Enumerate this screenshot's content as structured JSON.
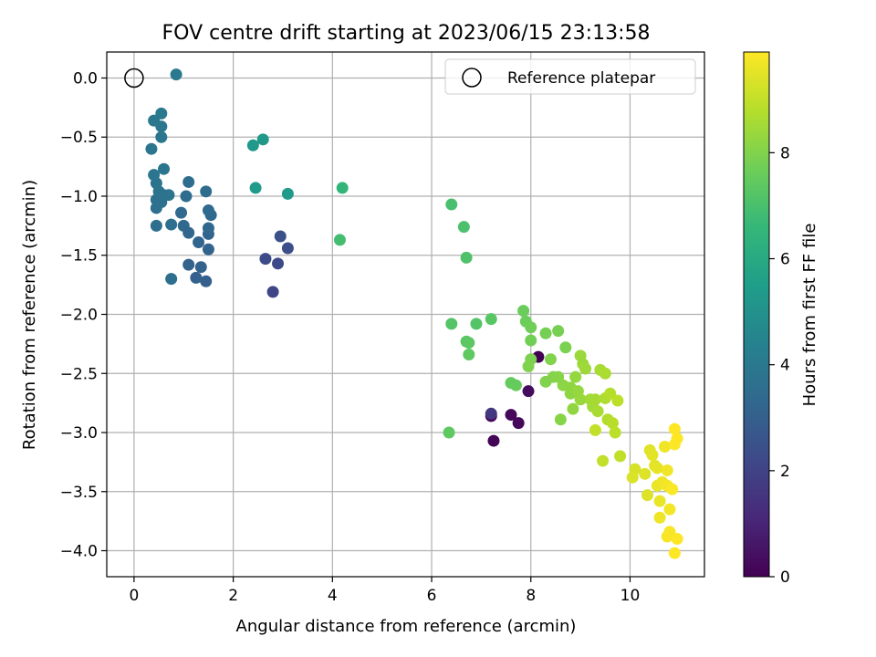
{
  "chart_data": {
    "type": "scatter",
    "title": "FOV centre drift starting at 2023/06/15 23:13:58",
    "xlabel": "Angular distance from reference (arcmin)",
    "ylabel": "Rotation from reference (arcmin)",
    "xlim": [
      -0.55,
      11.5
    ],
    "ylim": [
      -4.22,
      0.22
    ],
    "xticks": [
      0,
      2,
      4,
      6,
      8,
      10
    ],
    "yticks": [
      0.0,
      -0.5,
      -1.0,
      -1.5,
      -2.0,
      -2.5,
      -3.0,
      -3.5,
      -4.0
    ],
    "grid": true,
    "legend_position": "upper right",
    "reference": {
      "name": "Reference platepar",
      "x": 0,
      "y": 0,
      "marker": "open-circle"
    },
    "colorbar": {
      "label": "Hours from first FF file",
      "range": [
        0,
        9.9
      ],
      "ticks": [
        0,
        2,
        4,
        6,
        8
      ],
      "colormap": "viridis"
    },
    "colormap_stops": [
      "#440154",
      "#482878",
      "#3e4989",
      "#31688e",
      "#26828e",
      "#1f9e89",
      "#35b779",
      "#6ece58",
      "#b5de2b",
      "#fde725"
    ],
    "points": [
      {
        "x": 8.15,
        "y": -2.36,
        "c": 0.0
      },
      {
        "x": 7.2,
        "y": -2.86,
        "c": 0.1
      },
      {
        "x": 7.25,
        "y": -3.07,
        "c": 0.1
      },
      {
        "x": 7.6,
        "y": -2.85,
        "c": 0.2
      },
      {
        "x": 7.75,
        "y": -2.92,
        "c": 0.2
      },
      {
        "x": 7.95,
        "y": -2.65,
        "c": 0.3
      },
      {
        "x": 7.2,
        "y": -2.84,
        "c": 1.6
      },
      {
        "x": 2.8,
        "y": -1.81,
        "c": 2.1
      },
      {
        "x": 2.9,
        "y": -1.57,
        "c": 2.2
      },
      {
        "x": 2.65,
        "y": -1.53,
        "c": 2.3
      },
      {
        "x": 3.1,
        "y": -1.44,
        "c": 2.4
      },
      {
        "x": 2.95,
        "y": -1.34,
        "c": 2.5
      },
      {
        "x": 1.45,
        "y": -1.72,
        "c": 3.0
      },
      {
        "x": 1.25,
        "y": -1.69,
        "c": 3.05
      },
      {
        "x": 1.35,
        "y": -1.6,
        "c": 3.1
      },
      {
        "x": 1.1,
        "y": -1.58,
        "c": 3.1
      },
      {
        "x": 1.5,
        "y": -1.45,
        "c": 3.15
      },
      {
        "x": 1.3,
        "y": -1.39,
        "c": 3.2
      },
      {
        "x": 1.5,
        "y": -1.32,
        "c": 3.2
      },
      {
        "x": 1.1,
        "y": -1.31,
        "c": 3.25
      },
      {
        "x": 1.5,
        "y": -1.27,
        "c": 3.3
      },
      {
        "x": 1.0,
        "y": -1.25,
        "c": 3.3
      },
      {
        "x": 1.55,
        "y": -1.16,
        "c": 3.35
      },
      {
        "x": 1.5,
        "y": -1.12,
        "c": 3.4
      },
      {
        "x": 0.95,
        "y": -1.14,
        "c": 3.4
      },
      {
        "x": 1.05,
        "y": -1.0,
        "c": 3.45
      },
      {
        "x": 1.45,
        "y": -0.96,
        "c": 3.5
      },
      {
        "x": 1.1,
        "y": -0.88,
        "c": 3.5
      },
      {
        "x": 0.75,
        "y": -1.24,
        "c": 3.55
      },
      {
        "x": 0.75,
        "y": -1.7,
        "c": 3.6
      },
      {
        "x": 0.45,
        "y": -1.25,
        "c": 3.6
      },
      {
        "x": 0.45,
        "y": -1.1,
        "c": 3.65
      },
      {
        "x": 0.55,
        "y": -1.05,
        "c": 3.7
      },
      {
        "x": 0.45,
        "y": -1.03,
        "c": 3.7
      },
      {
        "x": 0.6,
        "y": -0.99,
        "c": 3.75
      },
      {
        "x": 0.7,
        "y": -0.99,
        "c": 3.75
      },
      {
        "x": 0.5,
        "y": -0.96,
        "c": 3.8
      },
      {
        "x": 0.45,
        "y": -0.89,
        "c": 3.8
      },
      {
        "x": 0.4,
        "y": -0.82,
        "c": 3.85
      },
      {
        "x": 0.6,
        "y": -0.77,
        "c": 3.85
      },
      {
        "x": 0.35,
        "y": -0.6,
        "c": 3.9
      },
      {
        "x": 0.55,
        "y": -0.5,
        "c": 3.9
      },
      {
        "x": 0.55,
        "y": -0.41,
        "c": 3.95
      },
      {
        "x": 0.4,
        "y": -0.36,
        "c": 3.95
      },
      {
        "x": 0.55,
        "y": -0.3,
        "c": 4.0
      },
      {
        "x": 0.85,
        "y": 0.03,
        "c": 4.0
      },
      {
        "x": 2.4,
        "y": -0.57,
        "c": 5.3
      },
      {
        "x": 2.6,
        "y": -0.52,
        "c": 5.3
      },
      {
        "x": 2.45,
        "y": -0.93,
        "c": 5.4
      },
      {
        "x": 3.1,
        "y": -0.98,
        "c": 5.4
      },
      {
        "x": 4.2,
        "y": -0.93,
        "c": 6.5
      },
      {
        "x": 4.15,
        "y": -1.37,
        "c": 6.9
      },
      {
        "x": 6.4,
        "y": -1.07,
        "c": 7.0
      },
      {
        "x": 6.65,
        "y": -1.26,
        "c": 7.05
      },
      {
        "x": 6.7,
        "y": -1.52,
        "c": 7.1
      },
      {
        "x": 6.4,
        "y": -2.08,
        "c": 7.2
      },
      {
        "x": 6.9,
        "y": -2.08,
        "c": 7.2
      },
      {
        "x": 7.2,
        "y": -2.04,
        "c": 7.3
      },
      {
        "x": 6.7,
        "y": -2.23,
        "c": 7.3
      },
      {
        "x": 6.75,
        "y": -2.24,
        "c": 7.35
      },
      {
        "x": 6.75,
        "y": -2.34,
        "c": 7.4
      },
      {
        "x": 6.35,
        "y": -3.0,
        "c": 7.4
      },
      {
        "x": 7.6,
        "y": -2.58,
        "c": 7.5
      },
      {
        "x": 7.7,
        "y": -2.6,
        "c": 7.55
      },
      {
        "x": 7.85,
        "y": -1.97,
        "c": 7.6
      },
      {
        "x": 7.9,
        "y": -2.06,
        "c": 7.65
      },
      {
        "x": 8.0,
        "y": -2.11,
        "c": 7.7
      },
      {
        "x": 8.0,
        "y": -2.22,
        "c": 7.75
      },
      {
        "x": 8.3,
        "y": -2.16,
        "c": 7.8
      },
      {
        "x": 8.55,
        "y": -2.14,
        "c": 7.85
      },
      {
        "x": 8.7,
        "y": -2.28,
        "c": 7.9
      },
      {
        "x": 8.0,
        "y": -2.38,
        "c": 7.9
      },
      {
        "x": 7.95,
        "y": -2.44,
        "c": 7.95
      },
      {
        "x": 8.4,
        "y": -2.38,
        "c": 8.0
      },
      {
        "x": 8.3,
        "y": -2.57,
        "c": 8.0
      },
      {
        "x": 8.45,
        "y": -2.53,
        "c": 8.05
      },
      {
        "x": 8.55,
        "y": -2.53,
        "c": 8.1
      },
      {
        "x": 8.6,
        "y": -2.89,
        "c": 8.1
      },
      {
        "x": 8.65,
        "y": -2.6,
        "c": 8.15
      },
      {
        "x": 8.8,
        "y": -2.62,
        "c": 8.2
      },
      {
        "x": 8.8,
        "y": -2.67,
        "c": 8.2
      },
      {
        "x": 8.85,
        "y": -2.8,
        "c": 8.25
      },
      {
        "x": 8.9,
        "y": -2.53,
        "c": 8.3
      },
      {
        "x": 8.95,
        "y": -2.65,
        "c": 8.3
      },
      {
        "x": 9.0,
        "y": -2.72,
        "c": 8.35
      },
      {
        "x": 9.0,
        "y": -2.35,
        "c": 8.4
      },
      {
        "x": 9.05,
        "y": -2.42,
        "c": 8.4
      },
      {
        "x": 9.1,
        "y": -2.46,
        "c": 8.45
      },
      {
        "x": 9.2,
        "y": -2.72,
        "c": 8.5
      },
      {
        "x": 9.25,
        "y": -2.78,
        "c": 8.5
      },
      {
        "x": 9.3,
        "y": -2.72,
        "c": 8.55
      },
      {
        "x": 9.35,
        "y": -2.82,
        "c": 8.6
      },
      {
        "x": 9.4,
        "y": -2.47,
        "c": 8.6
      },
      {
        "x": 9.5,
        "y": -2.5,
        "c": 8.65
      },
      {
        "x": 9.5,
        "y": -2.71,
        "c": 8.7
      },
      {
        "x": 9.55,
        "y": -2.89,
        "c": 8.75
      },
      {
        "x": 9.6,
        "y": -2.67,
        "c": 8.8
      },
      {
        "x": 9.65,
        "y": -2.92,
        "c": 8.85
      },
      {
        "x": 9.7,
        "y": -3.0,
        "c": 8.9
      },
      {
        "x": 9.75,
        "y": -2.73,
        "c": 8.9
      },
      {
        "x": 9.8,
        "y": -3.2,
        "c": 8.95
      },
      {
        "x": 9.45,
        "y": -3.24,
        "c": 9.0
      },
      {
        "x": 9.3,
        "y": -2.98,
        "c": 9.0
      },
      {
        "x": 10.1,
        "y": -3.31,
        "c": 9.3
      },
      {
        "x": 10.05,
        "y": -3.38,
        "c": 9.35
      },
      {
        "x": 10.3,
        "y": -3.35,
        "c": 9.4
      },
      {
        "x": 10.35,
        "y": -3.53,
        "c": 9.4
      },
      {
        "x": 10.4,
        "y": -3.15,
        "c": 9.45
      },
      {
        "x": 10.45,
        "y": -3.19,
        "c": 9.5
      },
      {
        "x": 10.5,
        "y": -3.28,
        "c": 9.5
      },
      {
        "x": 10.55,
        "y": -3.3,
        "c": 9.55
      },
      {
        "x": 10.55,
        "y": -3.45,
        "c": 9.6
      },
      {
        "x": 10.6,
        "y": -3.58,
        "c": 9.6
      },
      {
        "x": 10.6,
        "y": -3.72,
        "c": 9.65
      },
      {
        "x": 10.65,
        "y": -3.42,
        "c": 9.65
      },
      {
        "x": 10.7,
        "y": -3.12,
        "c": 9.7
      },
      {
        "x": 10.75,
        "y": -3.32,
        "c": 9.7
      },
      {
        "x": 10.75,
        "y": -3.45,
        "c": 9.75
      },
      {
        "x": 10.8,
        "y": -3.65,
        "c": 9.75
      },
      {
        "x": 10.8,
        "y": -3.84,
        "c": 9.8
      },
      {
        "x": 10.75,
        "y": -3.88,
        "c": 9.8
      },
      {
        "x": 10.85,
        "y": -3.48,
        "c": 9.85
      },
      {
        "x": 10.9,
        "y": -3.1,
        "c": 9.85
      },
      {
        "x": 10.9,
        "y": -2.97,
        "c": 9.9
      },
      {
        "x": 10.95,
        "y": -3.05,
        "c": 9.9
      },
      {
        "x": 10.95,
        "y": -3.9,
        "c": 9.9
      },
      {
        "x": 10.9,
        "y": -4.02,
        "c": 9.9
      }
    ]
  }
}
